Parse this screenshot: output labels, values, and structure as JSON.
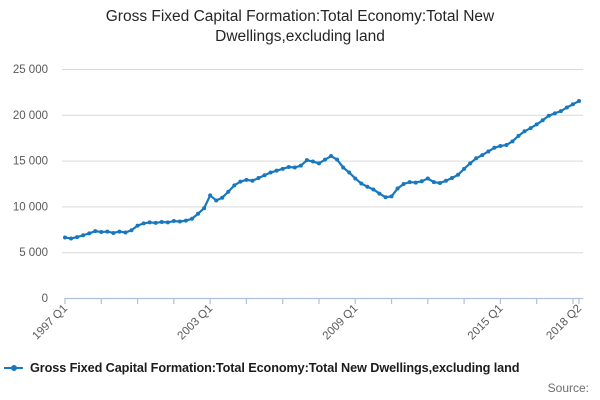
{
  "title": "Gross Fixed Capital Formation:Total Economy:Total New Dwellings,excluding land",
  "legend": {
    "label": "Gross Fixed Capital Formation:Total Economy:Total New Dwellings,excluding land",
    "marker_color": "#1778be"
  },
  "footer": {
    "source_label": "Source:"
  },
  "colors": {
    "series": "#1778be",
    "gridline": "#d9d9d9",
    "axis": "#afc1d8",
    "tick_label": "#595959"
  },
  "chart_data": {
    "type": "line",
    "title": "Gross Fixed Capital Formation:Total Economy:Total New Dwellings,excluding land",
    "x_start": "1997 Q1",
    "x_end": "2018 Q2",
    "x_frequency": "quarterly",
    "ylim": [
      0,
      25000
    ],
    "grid": "horizontal",
    "legend_position": "bottom-left",
    "y_ticks": [
      {
        "v": 25000,
        "label": "25 000"
      },
      {
        "v": 20000,
        "label": "20 000"
      },
      {
        "v": 15000,
        "label": "15 000"
      },
      {
        "v": 10000,
        "label": "10 000"
      },
      {
        "v": 5000,
        "label": "5 000"
      },
      {
        "v": 0,
        "label": "0"
      }
    ],
    "x_labeled_ticks": [
      {
        "index": 0,
        "label": "1997 Q1"
      },
      {
        "index": 24,
        "label": "2003 Q1"
      },
      {
        "index": 48,
        "label": "2009 Q1"
      },
      {
        "index": 72,
        "label": "2015 Q1"
      },
      {
        "index": 85,
        "label": "2018 Q2"
      }
    ],
    "minor_tick_every_quarters": 6,
    "series": [
      {
        "name": "Gross Fixed Capital Formation:Total Economy:Total New Dwellings,excluding land",
        "color": "#1778be",
        "values": [
          6600,
          6500,
          6650,
          6850,
          7050,
          7300,
          7200,
          7250,
          7100,
          7250,
          7150,
          7400,
          7900,
          8150,
          8250,
          8200,
          8300,
          8250,
          8400,
          8350,
          8450,
          8650,
          9200,
          9800,
          11200,
          10650,
          10950,
          11600,
          12300,
          12700,
          12900,
          12800,
          13100,
          13400,
          13700,
          13900,
          14100,
          14300,
          14250,
          14450,
          15050,
          14900,
          14700,
          15100,
          15500,
          15100,
          14250,
          13700,
          13050,
          12500,
          12150,
          11850,
          11400,
          11000,
          11100,
          11950,
          12450,
          12650,
          12600,
          12750,
          13050,
          12650,
          12550,
          12800,
          13100,
          13450,
          14100,
          14700,
          15250,
          15600,
          16000,
          16400,
          16600,
          16700,
          17100,
          17700,
          18200,
          18550,
          18950,
          19400,
          19900,
          20160,
          20400,
          20800,
          21150,
          21500
        ]
      }
    ]
  }
}
